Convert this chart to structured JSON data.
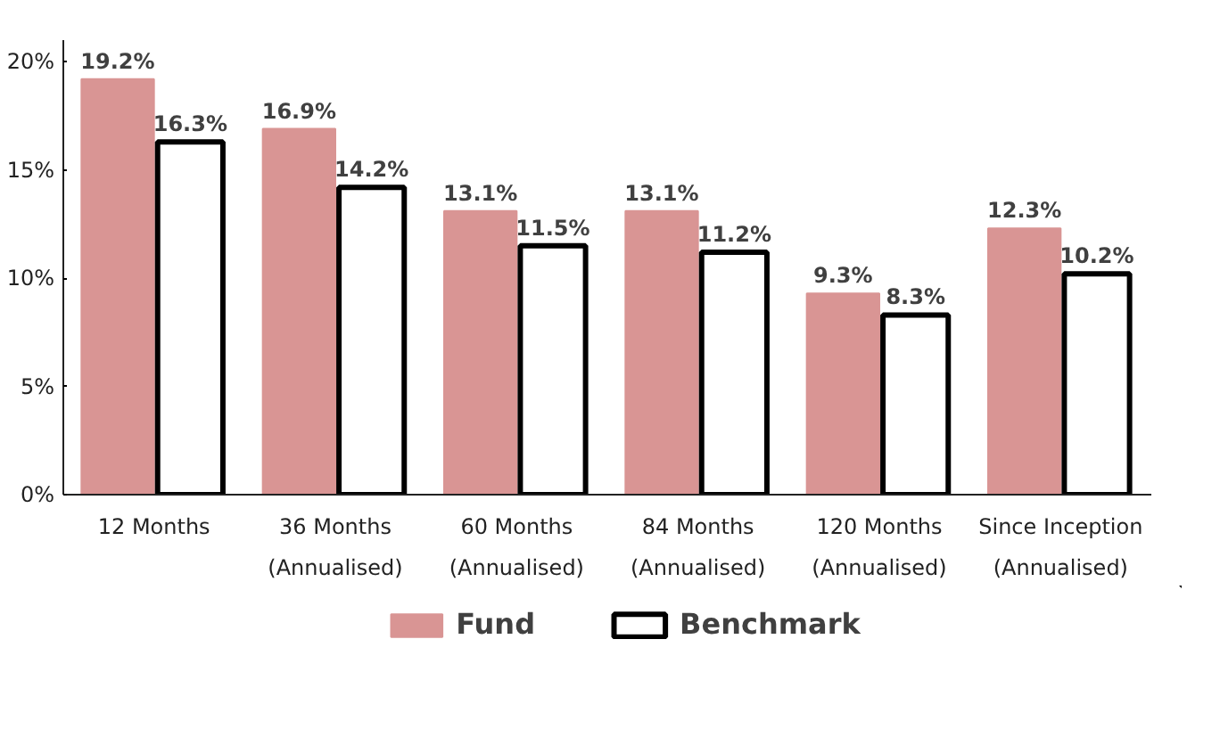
{
  "chart_data": {
    "type": "bar",
    "categories": [
      "12 Months",
      "36 Months\n(Annualised)",
      "60 Months\n(Annualised)",
      "84 Months\n(Annualised)",
      "120 Months\n(Annualised)",
      "Since Inception\n(Annualised)"
    ],
    "series": [
      {
        "name": "Fund",
        "color": "#d99594",
        "values": [
          19.2,
          16.9,
          13.1,
          13.1,
          9.3,
          12.3
        ],
        "value_labels": [
          "19.2%",
          "16.9%",
          "13.1%",
          "13.1%",
          "9.3%",
          "12.3%"
        ]
      },
      {
        "name": "Benchmark",
        "color": "#ffffff",
        "values": [
          16.3,
          14.2,
          11.5,
          11.2,
          8.3,
          10.2
        ],
        "value_labels": [
          "16.3%",
          "14.2%",
          "11.5%",
          "11.2%",
          "8.3%",
          "10.2%"
        ]
      }
    ],
    "ylim": [
      0,
      21
    ],
    "yticks": [
      {
        "value": 0,
        "label": "0%"
      },
      {
        "value": 5,
        "label": "5%"
      },
      {
        "value": 10,
        "label": "10%"
      },
      {
        "value": 15,
        "label": "15%"
      },
      {
        "value": 20,
        "label": "20%"
      }
    ],
    "legend": "bottom"
  }
}
